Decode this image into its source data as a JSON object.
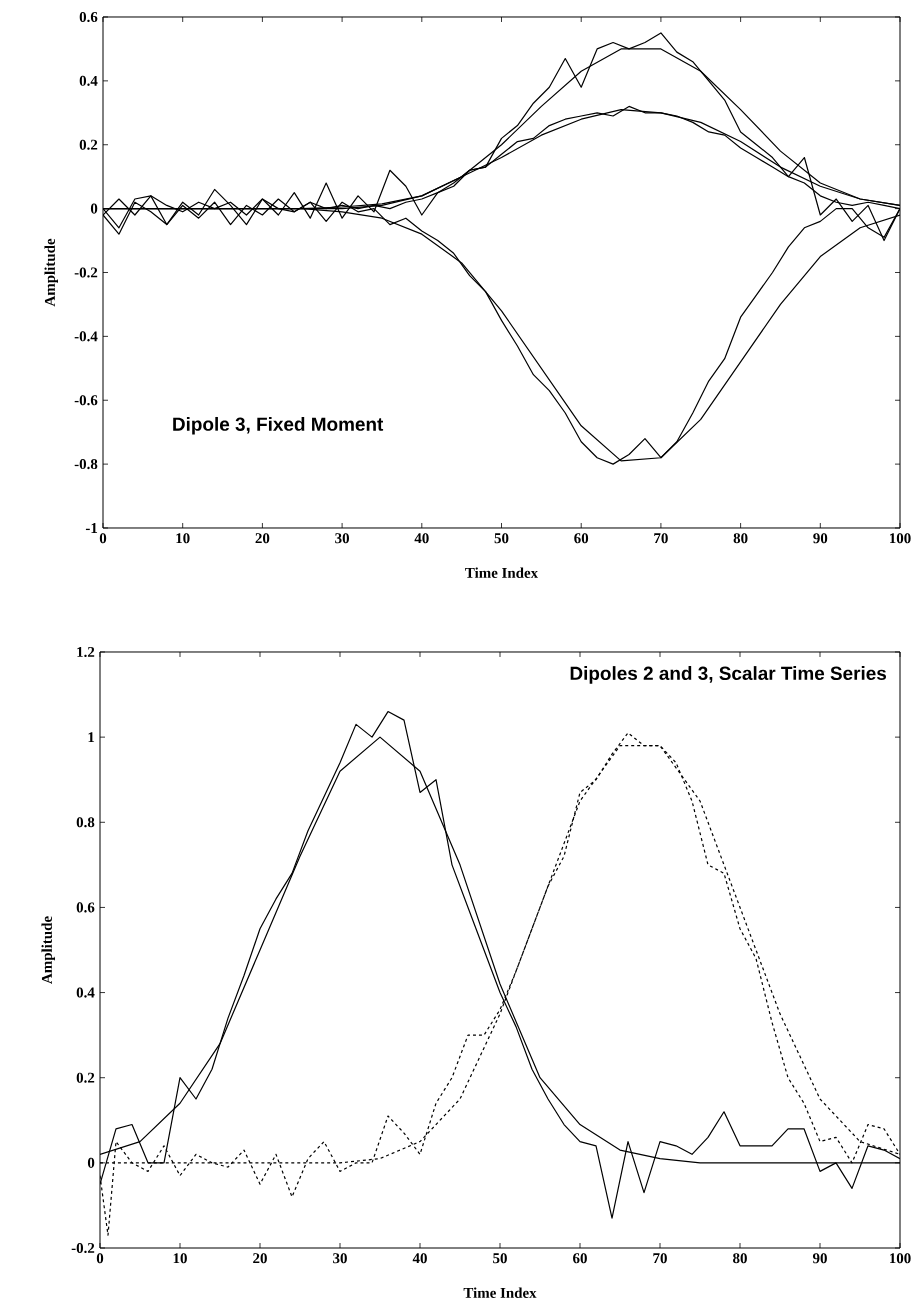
{
  "chart_data": [
    {
      "type": "line",
      "title": "Dipole 3, Fixed Moment",
      "xlabel": "Time Index",
      "ylabel": "Amplitude",
      "xlim": [
        0,
        100
      ],
      "xticks": [
        0,
        10,
        20,
        30,
        40,
        50,
        60,
        70,
        80,
        90,
        100
      ],
      "ylim": [
        -1,
        0.6
      ],
      "yticks": [
        -1,
        -0.8,
        -0.6,
        -0.4,
        -0.2,
        0,
        0.2,
        0.4,
        0.6
      ],
      "series": [
        {
          "color": "#000000",
          "line_style": "solid",
          "x": [
            0,
            5,
            10,
            15,
            20,
            25,
            30,
            35,
            40,
            45,
            50,
            55,
            60,
            65,
            70,
            75,
            80,
            85,
            90,
            95,
            100
          ],
          "values": [
            0,
            0,
            0,
            0,
            0,
            0,
            0.005,
            0.015,
            0.04,
            0.1,
            0.2,
            0.32,
            0.43,
            0.5,
            0.5,
            0.43,
            0.31,
            0.18,
            0.08,
            0.03,
            0.01
          ]
        },
        {
          "color": "#000000",
          "line_style": "solid",
          "x": [
            0,
            5,
            10,
            15,
            20,
            25,
            30,
            35,
            40,
            45,
            50,
            55,
            60,
            65,
            70,
            75,
            80,
            85,
            90,
            95,
            100
          ],
          "values": [
            0,
            0,
            0,
            0,
            0,
            0,
            0,
            0.01,
            0.04,
            0.1,
            0.16,
            0.23,
            0.28,
            0.31,
            0.3,
            0.27,
            0.21,
            0.13,
            0.07,
            0.03,
            0.01
          ]
        },
        {
          "color": "#000000",
          "line_style": "solid",
          "x": [
            0,
            5,
            10,
            15,
            20,
            25,
            30,
            35,
            40,
            45,
            50,
            55,
            60,
            65,
            70,
            75,
            80,
            85,
            90,
            95,
            100
          ],
          "values": [
            0,
            0,
            0,
            0,
            0,
            0,
            -0.01,
            -0.03,
            -0.08,
            -0.17,
            -0.32,
            -0.5,
            -0.68,
            -0.79,
            -0.78,
            -0.66,
            -0.48,
            -0.3,
            -0.15,
            -0.06,
            -0.02
          ]
        },
        {
          "color": "#000000",
          "line_style": "solid",
          "x": [
            0,
            2,
            4,
            6,
            8,
            10,
            12,
            14,
            16,
            18,
            20,
            22,
            24,
            26,
            28,
            30,
            32,
            34,
            36,
            38,
            40,
            42,
            44,
            46,
            48,
            50,
            52,
            54,
            56,
            58,
            60,
            62,
            64,
            66,
            68,
            70,
            72,
            74,
            76,
            78,
            80,
            82,
            84,
            86,
            88,
            90,
            92,
            94,
            96,
            98,
            100
          ],
          "values": [
            0,
            -0.06,
            0.03,
            0.04,
            -0.05,
            0.02,
            -0.02,
            0.06,
            0.01,
            -0.05,
            0.03,
            -0.02,
            0.05,
            -0.03,
            0.08,
            -0.03,
            0.04,
            -0.01,
            0.12,
            0.07,
            -0.02,
            0.05,
            0.07,
            0.12,
            0.13,
            0.22,
            0.26,
            0.33,
            0.38,
            0.47,
            0.38,
            0.5,
            0.52,
            0.5,
            0.52,
            0.55,
            0.49,
            0.46,
            0.4,
            0.34,
            0.24,
            0.2,
            0.16,
            0.1,
            0.16,
            -0.02,
            0.03,
            -0.04,
            0.01,
            -0.1,
            0
          ]
        },
        {
          "color": "#000000",
          "line_style": "solid",
          "x": [
            0,
            2,
            4,
            6,
            8,
            10,
            12,
            14,
            16,
            18,
            20,
            22,
            24,
            26,
            28,
            30,
            32,
            34,
            36,
            38,
            40,
            42,
            44,
            46,
            48,
            50,
            52,
            54,
            56,
            58,
            60,
            62,
            64,
            66,
            68,
            70,
            72,
            74,
            76,
            78,
            80,
            82,
            84,
            86,
            88,
            90,
            92,
            94,
            96,
            98,
            100
          ],
          "values": [
            -0.02,
            0.03,
            -0.02,
            0.04,
            0.01,
            -0.01,
            0.02,
            0,
            0.02,
            -0.02,
            0.03,
            0,
            -0.01,
            0.02,
            0,
            0.01,
            0,
            0.01,
            0,
            0.02,
            0.03,
            0.05,
            0.08,
            0.12,
            0.13,
            0.17,
            0.21,
            0.22,
            0.26,
            0.28,
            0.29,
            0.3,
            0.29,
            0.32,
            0.3,
            0.3,
            0.29,
            0.27,
            0.24,
            0.23,
            0.19,
            0.16,
            0.13,
            0.1,
            0.08,
            0.04,
            0.02,
            0.01,
            0.02,
            0.01,
            0
          ]
        },
        {
          "color": "#000000",
          "line_style": "solid",
          "x": [
            0,
            2,
            4,
            6,
            8,
            10,
            12,
            14,
            16,
            18,
            20,
            22,
            24,
            26,
            28,
            30,
            32,
            34,
            36,
            38,
            40,
            42,
            44,
            46,
            48,
            50,
            52,
            54,
            56,
            58,
            60,
            62,
            64,
            66,
            68,
            70,
            72,
            74,
            76,
            78,
            80,
            82,
            84,
            86,
            88,
            90,
            92,
            94,
            96,
            98,
            100
          ],
          "values": [
            -0.02,
            -0.08,
            0.02,
            -0.01,
            -0.05,
            0.01,
            -0.03,
            0.02,
            -0.05,
            0.01,
            -0.02,
            0.03,
            -0.01,
            0.02,
            -0.04,
            0.02,
            -0.01,
            0,
            -0.05,
            -0.03,
            -0.07,
            -0.1,
            -0.14,
            -0.21,
            -0.26,
            -0.35,
            -0.43,
            -0.52,
            -0.57,
            -0.64,
            -0.73,
            -0.78,
            -0.8,
            -0.77,
            -0.72,
            -0.78,
            -0.73,
            -0.64,
            -0.54,
            -0.47,
            -0.34,
            -0.27,
            -0.2,
            -0.12,
            -0.06,
            -0.04,
            0,
            0,
            -0.06,
            -0.09,
            0
          ]
        }
      ]
    },
    {
      "type": "line",
      "title": "Dipoles 2 and 3, Scalar Time Series",
      "xlabel": "Time Index",
      "ylabel": "Amplitude",
      "xlim": [
        0,
        100
      ],
      "xticks": [
        0,
        10,
        20,
        30,
        40,
        50,
        60,
        70,
        80,
        90,
        100
      ],
      "ylim": [
        -0.2,
        1.2
      ],
      "yticks": [
        -0.2,
        0,
        0.2,
        0.4,
        0.6,
        0.8,
        1,
        1.2
      ],
      "series": [
        {
          "color": "#000000",
          "line_style": "solid",
          "x": [
            0,
            5,
            10,
            15,
            20,
            25,
            30,
            35,
            40,
            45,
            50,
            55,
            60,
            65,
            70,
            75,
            80,
            85,
            90,
            95,
            100
          ],
          "values": [
            0.02,
            0.05,
            0.14,
            0.28,
            0.5,
            0.72,
            0.92,
            1,
            0.92,
            0.7,
            0.42,
            0.2,
            0.09,
            0.03,
            0.01,
            0,
            0,
            0,
            0,
            0,
            0
          ]
        },
        {
          "color": "#000000",
          "line_style": "dashed",
          "x": [
            0,
            5,
            10,
            15,
            20,
            25,
            30,
            35,
            40,
            45,
            50,
            55,
            60,
            65,
            70,
            75,
            80,
            85,
            90,
            95,
            100
          ],
          "values": [
            0,
            0,
            0,
            0,
            0,
            0,
            0,
            0.01,
            0.05,
            0.15,
            0.35,
            0.6,
            0.85,
            0.98,
            0.98,
            0.85,
            0.6,
            0.35,
            0.15,
            0.05,
            0.02
          ]
        },
        {
          "color": "#000000",
          "line_style": "solid",
          "x": [
            0,
            2,
            4,
            6,
            8,
            10,
            12,
            14,
            16,
            18,
            20,
            22,
            24,
            26,
            28,
            30,
            32,
            34,
            36,
            38,
            40,
            42,
            44,
            46,
            48,
            50,
            52,
            54,
            56,
            58,
            60,
            62,
            64,
            66,
            68,
            70,
            72,
            74,
            76,
            78,
            80,
            82,
            84,
            86,
            88,
            90,
            92,
            94,
            96,
            98,
            100
          ],
          "values": [
            -0.05,
            0.08,
            0.09,
            0,
            0,
            0.2,
            0.15,
            0.22,
            0.34,
            0.44,
            0.55,
            0.62,
            0.68,
            0.78,
            0.86,
            0.94,
            1.03,
            1,
            1.06,
            1.04,
            0.87,
            0.9,
            0.7,
            0.6,
            0.5,
            0.4,
            0.32,
            0.22,
            0.15,
            0.09,
            0.05,
            0.04,
            -0.13,
            0.05,
            -0.07,
            0.05,
            0.04,
            0.02,
            0.06,
            0.12,
            0.04,
            0.04,
            0.04,
            0.08,
            0.08,
            -0.02,
            0,
            -0.06,
            0.04,
            0.03,
            0.01
          ]
        },
        {
          "color": "#000000",
          "line_style": "dashed",
          "x": [
            0,
            1,
            2,
            4,
            6,
            8,
            10,
            12,
            14,
            16,
            18,
            20,
            22,
            24,
            26,
            28,
            30,
            32,
            34,
            36,
            38,
            40,
            42,
            44,
            46,
            48,
            50,
            52,
            54,
            56,
            58,
            60,
            62,
            64,
            66,
            68,
            70,
            72,
            74,
            76,
            78,
            80,
            82,
            84,
            86,
            88,
            90,
            92,
            94,
            96,
            98,
            100
          ],
          "values": [
            -0.03,
            -0.17,
            0.05,
            0,
            -0.02,
            0.04,
            -0.03,
            0.02,
            0,
            -0.01,
            0.03,
            -0.05,
            0.02,
            -0.08,
            0.01,
            0.05,
            -0.02,
            0,
            0,
            0.11,
            0.07,
            0.02,
            0.14,
            0.2,
            0.3,
            0.3,
            0.36,
            0.45,
            0.55,
            0.65,
            0.72,
            0.87,
            0.9,
            0.96,
            1.01,
            0.98,
            0.98,
            0.94,
            0.85,
            0.7,
            0.68,
            0.55,
            0.48,
            0.33,
            0.2,
            0.14,
            0.05,
            0.06,
            0,
            0.09,
            0.08,
            0.02
          ]
        }
      ]
    }
  ]
}
